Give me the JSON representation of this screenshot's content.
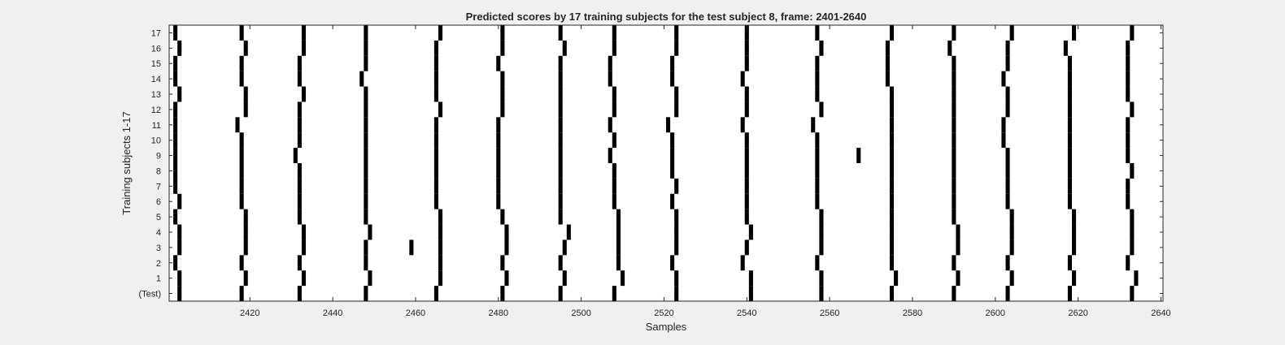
{
  "chart_data": {
    "type": "heatmap",
    "title": "Predicted scores by 17 training subjects for the test subject 8, frame: 2401-2640",
    "xlabel": "Samples",
    "ylabel": "Training subjects 1-17",
    "xlim": [
      2401,
      2640
    ],
    "xticks": [
      2420,
      2440,
      2460,
      2480,
      2500,
      2520,
      2540,
      2560,
      2580,
      2600,
      2620,
      2640
    ],
    "rows": [
      "(Test)",
      "1",
      "2",
      "3",
      "4",
      "5",
      "6",
      "7",
      "8",
      "9",
      "10",
      "11",
      "12",
      "13",
      "14",
      "15",
      "16",
      "17"
    ],
    "grid": false,
    "colors": {
      "mark": "#000000",
      "background": "#ffffff",
      "figure": "#f0f0f0"
    },
    "events": {
      "(Test)": [
        2403,
        2418,
        2432,
        2448,
        2465,
        2481,
        2495,
        2508,
        2523,
        2541,
        2558,
        2575,
        2590,
        2603,
        2618,
        2633
      ],
      "1": [
        2403,
        2419,
        2433,
        2449,
        2466,
        2482,
        2496,
        2510,
        2523,
        2541,
        2558,
        2576,
        2591,
        2604,
        2619,
        2634
      ],
      "2": [
        2402,
        2418,
        2432,
        2448,
        2466,
        2481,
        2495,
        2509,
        2522,
        2539,
        2557,
        2575,
        2590,
        2603,
        2618,
        2632
      ],
      "3": [
        2403,
        2419,
        2433,
        2448,
        2459,
        2466,
        2482,
        2496,
        2509,
        2523,
        2540,
        2558,
        2575,
        2591,
        2604,
        2619,
        2633
      ],
      "4": [
        2403,
        2419,
        2433,
        2449,
        2466,
        2482,
        2497,
        2509,
        2523,
        2541,
        2558,
        2575,
        2591,
        2604,
        2619,
        2633
      ],
      "5": [
        2402,
        2419,
        2432,
        2448,
        2466,
        2481,
        2495,
        2509,
        2523,
        2540,
        2558,
        2575,
        2590,
        2604,
        2619,
        2633
      ],
      "6": [
        2403,
        2418,
        2432,
        2448,
        2465,
        2480,
        2495,
        2508,
        2522,
        2540,
        2557,
        2575,
        2590,
        2603,
        2618,
        2632
      ],
      "7": [
        2402,
        2418,
        2432,
        2448,
        2465,
        2480,
        2495,
        2508,
        2523,
        2540,
        2557,
        2575,
        2590,
        2603,
        2618,
        2632
      ],
      "8": [
        2402,
        2418,
        2432,
        2448,
        2465,
        2480,
        2495,
        2508,
        2522,
        2540,
        2557,
        2575,
        2590,
        2603,
        2618,
        2633
      ],
      "9": [
        2402,
        2418,
        2431,
        2448,
        2465,
        2480,
        2495,
        2507,
        2522,
        2540,
        2557,
        2567,
        2575,
        2590,
        2603,
        2618,
        2632
      ],
      "10": [
        2402,
        2418,
        2432,
        2448,
        2465,
        2480,
        2495,
        2508,
        2522,
        2540,
        2557,
        2575,
        2590,
        2602,
        2618,
        2632
      ],
      "11": [
        2402,
        2417,
        2432,
        2448,
        2465,
        2480,
        2495,
        2507,
        2521,
        2539,
        2556,
        2575,
        2590,
        2602,
        2618,
        2632
      ],
      "12": [
        2402,
        2419,
        2432,
        2448,
        2466,
        2481,
        2495,
        2508,
        2523,
        2540,
        2558,
        2575,
        2590,
        2603,
        2618,
        2633
      ],
      "13": [
        2403,
        2419,
        2433,
        2448,
        2465,
        2481,
        2495,
        2508,
        2523,
        2540,
        2557,
        2575,
        2590,
        2603,
        2618,
        2632
      ],
      "14": [
        2402,
        2418,
        2432,
        2447,
        2465,
        2481,
        2495,
        2507,
        2522,
        2539,
        2557,
        2574,
        2590,
        2602,
        2618,
        2632
      ],
      "15": [
        2402,
        2418,
        2432,
        2448,
        2465,
        2480,
        2495,
        2507,
        2522,
        2540,
        2557,
        2574,
        2590,
        2603,
        2618,
        2632
      ],
      "16": [
        2403,
        2419,
        2433,
        2448,
        2465,
        2481,
        2496,
        2508,
        2523,
        2540,
        2558,
        2574,
        2589,
        2603,
        2617,
        2632
      ],
      "17": [
        2402,
        2418,
        2433,
        2448,
        2466,
        2481,
        2495,
        2508,
        2523,
        2540,
        2557,
        2575,
        2590,
        2604,
        2619,
        2633
      ]
    }
  }
}
